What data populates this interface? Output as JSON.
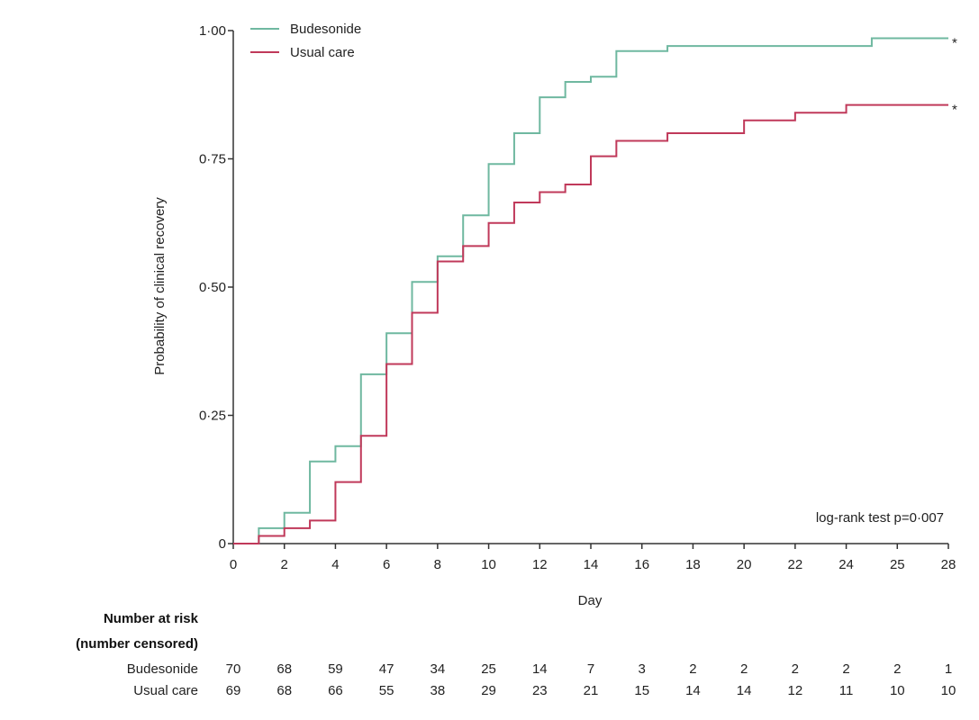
{
  "chart_data": {
    "type": "line",
    "step": true,
    "xlabel": "Day",
    "ylabel": "Probability of clinical recovery",
    "xlim": [
      0,
      28
    ],
    "ylim": [
      0,
      1
    ],
    "x_ticks": [
      0,
      2,
      4,
      6,
      8,
      10,
      12,
      14,
      16,
      18,
      20,
      22,
      24,
      25,
      28
    ],
    "y_ticks": [
      {
        "value": 0,
        "label": "0"
      },
      {
        "value": 0.25,
        "label": "0·25"
      },
      {
        "value": 0.5,
        "label": "0·50"
      },
      {
        "value": 0.75,
        "label": "0·75"
      },
      {
        "value": 1.0,
        "label": "1·00"
      }
    ],
    "grid": false,
    "legend_position": "top-left",
    "annotation": "log-rank test p=0·007",
    "series": [
      {
        "name": "Budesonide",
        "color": "#6fb8a0",
        "end_marker": "*",
        "x": [
          0,
          1,
          2,
          3,
          4,
          5,
          6,
          7,
          8,
          9,
          10,
          11,
          12,
          13,
          14,
          15,
          17,
          25,
          28
        ],
        "y": [
          0,
          0.03,
          0.06,
          0.16,
          0.19,
          0.33,
          0.41,
          0.51,
          0.56,
          0.64,
          0.74,
          0.8,
          0.87,
          0.9,
          0.91,
          0.96,
          0.97,
          0.985,
          0.985
        ]
      },
      {
        "name": "Usual care",
        "color": "#c0395a",
        "end_marker": "*",
        "x": [
          0,
          1,
          2,
          3,
          4,
          5,
          6,
          7,
          8,
          9,
          10,
          11,
          12,
          13,
          14,
          15,
          17,
          20,
          22,
          24,
          28
        ],
        "y": [
          0,
          0.015,
          0.03,
          0.045,
          0.12,
          0.21,
          0.35,
          0.45,
          0.55,
          0.58,
          0.625,
          0.665,
          0.685,
          0.7,
          0.755,
          0.785,
          0.8,
          0.825,
          0.84,
          0.855,
          0.855
        ]
      }
    ],
    "risk_table": {
      "header": [
        "Number at risk",
        "(number censored)"
      ],
      "columns_x": [
        0,
        2,
        4,
        6,
        8,
        10,
        12,
        14,
        16,
        18,
        20,
        22,
        24,
        25,
        28
      ],
      "rows": [
        {
          "label": "Budesonide",
          "values": [
            "70",
            "68",
            "59",
            "47",
            "34",
            "25",
            "14",
            "7",
            "3",
            "2",
            "2",
            "2",
            "2",
            "2",
            "1"
          ]
        },
        {
          "label": "Usual care",
          "values": [
            "69",
            "68",
            "66",
            "55",
            "38",
            "29",
            "23",
            "21",
            "15",
            "14",
            "14",
            "12",
            "11",
            "10",
            "10"
          ]
        }
      ]
    }
  }
}
